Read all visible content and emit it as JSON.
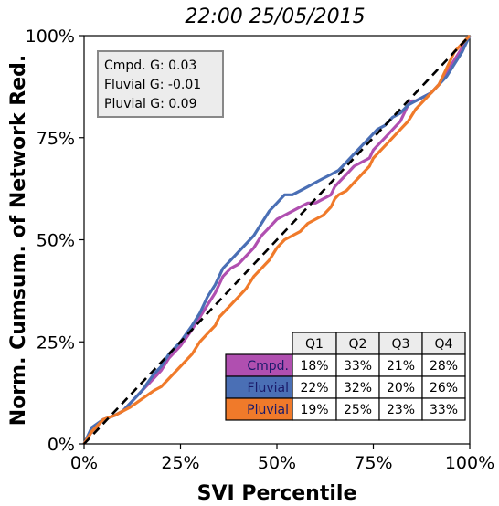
{
  "chart_data": {
    "type": "line",
    "title": "22:00 25/05/2015",
    "xlabel": "SVI Percentile",
    "ylabel": "Norm. Cumsum. of Network Red.",
    "xlim": [
      0,
      100
    ],
    "ylim": [
      0,
      100
    ],
    "x_ticks": [
      "0%",
      "25%",
      "50%",
      "75%",
      "100%"
    ],
    "y_ticks": [
      "0%",
      "25%",
      "50%",
      "75%",
      "100%"
    ],
    "grid": false,
    "legend_placement": "top-left",
    "gini_box": [
      "Cmpd. G: 0.03",
      "Fluvial G: -0.01",
      "Pluvial G: 0.09"
    ],
    "reference_line": {
      "name": "equality",
      "points": [
        [
          0,
          0
        ],
        [
          100,
          100
        ]
      ],
      "color": "#000000",
      "style": "dashed"
    },
    "series": [
      {
        "name": "Cmpd.",
        "color": "#b04fb0",
        "points": [
          [
            0,
            0
          ],
          [
            2,
            3
          ],
          [
            5,
            6
          ],
          [
            8,
            7
          ],
          [
            10,
            8
          ],
          [
            12,
            10
          ],
          [
            15,
            13
          ],
          [
            18,
            16
          ],
          [
            20,
            18
          ],
          [
            22,
            21
          ],
          [
            25,
            24
          ],
          [
            28,
            28
          ],
          [
            30,
            31
          ],
          [
            32,
            34
          ],
          [
            34,
            37
          ],
          [
            36,
            41
          ],
          [
            38,
            43
          ],
          [
            40,
            44
          ],
          [
            42,
            46
          ],
          [
            44,
            48
          ],
          [
            46,
            51
          ],
          [
            48,
            53
          ],
          [
            50,
            55
          ],
          [
            52,
            56
          ],
          [
            54,
            57
          ],
          [
            56,
            58
          ],
          [
            58,
            59
          ],
          [
            60,
            59
          ],
          [
            62,
            60
          ],
          [
            64,
            61
          ],
          [
            65,
            63
          ],
          [
            66,
            64
          ],
          [
            68,
            66
          ],
          [
            70,
            68
          ],
          [
            72,
            69
          ],
          [
            74,
            70
          ],
          [
            75,
            72
          ],
          [
            76,
            73
          ],
          [
            78,
            75
          ],
          [
            80,
            77
          ],
          [
            82,
            79
          ],
          [
            84,
            83
          ],
          [
            85,
            84
          ],
          [
            86,
            84
          ],
          [
            88,
            85
          ],
          [
            90,
            86
          ],
          [
            92,
            88
          ],
          [
            94,
            91
          ],
          [
            96,
            94
          ],
          [
            98,
            97
          ],
          [
            100,
            100
          ]
        ]
      },
      {
        "name": "Fluvial",
        "color": "#4a6fb5",
        "points": [
          [
            0,
            0
          ],
          [
            2,
            4
          ],
          [
            5,
            6
          ],
          [
            8,
            7
          ],
          [
            10,
            8
          ],
          [
            12,
            10
          ],
          [
            15,
            13
          ],
          [
            18,
            17
          ],
          [
            20,
            19
          ],
          [
            22,
            22
          ],
          [
            25,
            25
          ],
          [
            28,
            29
          ],
          [
            30,
            32
          ],
          [
            32,
            36
          ],
          [
            34,
            39
          ],
          [
            36,
            43
          ],
          [
            38,
            45
          ],
          [
            40,
            47
          ],
          [
            42,
            49
          ],
          [
            44,
            51
          ],
          [
            46,
            54
          ],
          [
            48,
            57
          ],
          [
            50,
            59
          ],
          [
            52,
            61
          ],
          [
            54,
            61
          ],
          [
            56,
            62
          ],
          [
            58,
            63
          ],
          [
            60,
            64
          ],
          [
            62,
            65
          ],
          [
            64,
            66
          ],
          [
            66,
            67
          ],
          [
            68,
            69
          ],
          [
            70,
            71
          ],
          [
            72,
            73
          ],
          [
            74,
            75
          ],
          [
            75,
            76
          ],
          [
            76,
            77
          ],
          [
            78,
            78
          ],
          [
            80,
            80
          ],
          [
            82,
            81
          ],
          [
            84,
            83
          ],
          [
            86,
            84
          ],
          [
            88,
            85
          ],
          [
            90,
            86
          ],
          [
            92,
            88
          ],
          [
            94,
            90
          ],
          [
            96,
            93
          ],
          [
            98,
            96
          ],
          [
            100,
            100
          ]
        ]
      },
      {
        "name": "Pluvial",
        "color": "#f07a2a",
        "points": [
          [
            0,
            0
          ],
          [
            2,
            3
          ],
          [
            5,
            6
          ],
          [
            8,
            7
          ],
          [
            10,
            8
          ],
          [
            12,
            9
          ],
          [
            15,
            11
          ],
          [
            18,
            13
          ],
          [
            20,
            14
          ],
          [
            22,
            16
          ],
          [
            25,
            19
          ],
          [
            28,
            22
          ],
          [
            30,
            25
          ],
          [
            32,
            27
          ],
          [
            34,
            29
          ],
          [
            35,
            31
          ],
          [
            36,
            32
          ],
          [
            38,
            34
          ],
          [
            40,
            36
          ],
          [
            42,
            38
          ],
          [
            44,
            41
          ],
          [
            46,
            43
          ],
          [
            48,
            45
          ],
          [
            50,
            48
          ],
          [
            52,
            50
          ],
          [
            54,
            51
          ],
          [
            56,
            52
          ],
          [
            58,
            54
          ],
          [
            60,
            55
          ],
          [
            62,
            56
          ],
          [
            64,
            58
          ],
          [
            65,
            60
          ],
          [
            66,
            61
          ],
          [
            68,
            62
          ],
          [
            70,
            64
          ],
          [
            72,
            66
          ],
          [
            74,
            68
          ],
          [
            75,
            70
          ],
          [
            76,
            71
          ],
          [
            78,
            73
          ],
          [
            80,
            75
          ],
          [
            82,
            77
          ],
          [
            84,
            79
          ],
          [
            86,
            82
          ],
          [
            88,
            84
          ],
          [
            90,
            86
          ],
          [
            92,
            88
          ],
          [
            94,
            92
          ],
          [
            96,
            96
          ],
          [
            98,
            98
          ],
          [
            100,
            100
          ]
        ]
      }
    ],
    "quartile_table": {
      "headers": [
        "Q1",
        "Q2",
        "Q3",
        "Q4"
      ],
      "rows": [
        {
          "label": "Cmpd.",
          "color": "#b04fb0",
          "values": [
            "18%",
            "33%",
            "21%",
            "28%"
          ]
        },
        {
          "label": "Fluvial",
          "color": "#4a6fb5",
          "values": [
            "22%",
            "32%",
            "20%",
            "26%"
          ]
        },
        {
          "label": "Pluvial",
          "color": "#f07a2a",
          "values": [
            "19%",
            "25%",
            "23%",
            "33%"
          ]
        }
      ]
    }
  }
}
